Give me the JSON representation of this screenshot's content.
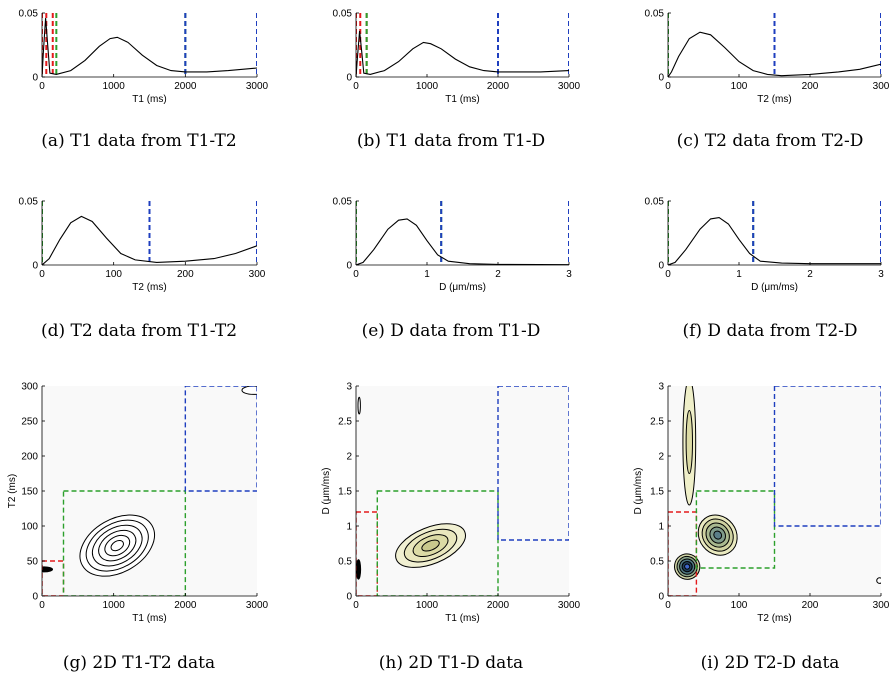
{
  "chart_data": [
    {
      "id": "a",
      "type": "line",
      "caption": "(a) T1 data from T1-T2",
      "xlabel": "T1 (ms)",
      "ylabel": "",
      "xlim": [
        0,
        3000
      ],
      "ylim": [
        0,
        0.05
      ],
      "xticks": [
        0,
        1000,
        2000,
        3000
      ],
      "yticks": [
        0,
        0.05
      ],
      "series": [
        {
          "color": "#000000",
          "points": [
            [
              0,
              0
            ],
            [
              20,
              0.02
            ],
            [
              50,
              0.046
            ],
            [
              80,
              0.025
            ],
            [
              110,
              0.003
            ],
            [
              200,
              0.002
            ],
            [
              400,
              0.005
            ],
            [
              600,
              0.013
            ],
            [
              800,
              0.024
            ],
            [
              950,
              0.03
            ],
            [
              1050,
              0.031
            ],
            [
              1200,
              0.027
            ],
            [
              1400,
              0.017
            ],
            [
              1600,
              0.009
            ],
            [
              1800,
              0.005
            ],
            [
              2000,
              0.004
            ],
            [
              2300,
              0.004
            ],
            [
              2600,
              0.005
            ],
            [
              3000,
              0.007
            ]
          ]
        }
      ],
      "vlines": [
        {
          "x": 0,
          "color": "#e41a1c"
        },
        {
          "x": 60,
          "color": "#e41a1c"
        },
        {
          "x": 150,
          "color": "#e41a1c"
        },
        {
          "x": 200,
          "color": "#2ca02c"
        },
        {
          "x": 2000,
          "color": "#2ca02c"
        },
        {
          "x": 2000,
          "color": "#1f3fbf"
        },
        {
          "x": 3000,
          "color": "#1f3fbf"
        }
      ]
    },
    {
      "id": "b",
      "type": "line",
      "caption": "(b) T1 data from T1-D",
      "xlabel": "T1 (ms)",
      "ylabel": "",
      "xlim": [
        0,
        3000
      ],
      "ylim": [
        0,
        0.05
      ],
      "xticks": [
        0,
        1000,
        2000,
        3000
      ],
      "yticks": [
        0,
        0.05
      ],
      "series": [
        {
          "color": "#000000",
          "points": [
            [
              0,
              0
            ],
            [
              20,
              0.015
            ],
            [
              50,
              0.036
            ],
            [
              80,
              0.02
            ],
            [
              110,
              0.003
            ],
            [
              200,
              0.002
            ],
            [
              400,
              0.005
            ],
            [
              600,
              0.012
            ],
            [
              800,
              0.022
            ],
            [
              950,
              0.027
            ],
            [
              1050,
              0.026
            ],
            [
              1200,
              0.022
            ],
            [
              1400,
              0.014
            ],
            [
              1600,
              0.008
            ],
            [
              1800,
              0.005
            ],
            [
              2000,
              0.004
            ],
            [
              2300,
              0.004
            ],
            [
              2600,
              0.004
            ],
            [
              3000,
              0.005
            ]
          ]
        }
      ],
      "vlines": [
        {
          "x": 0,
          "color": "#e41a1c"
        },
        {
          "x": 60,
          "color": "#e41a1c"
        },
        {
          "x": 150,
          "color": "#e41a1c"
        },
        {
          "x": 150,
          "color": "#2ca02c"
        },
        {
          "x": 2000,
          "color": "#2ca02c"
        },
        {
          "x": 2000,
          "color": "#1f3fbf"
        },
        {
          "x": 3000,
          "color": "#1f3fbf"
        }
      ]
    },
    {
      "id": "c",
      "type": "line",
      "caption": "(c) T2 data from T2-D",
      "xlabel": "T2 (ms)",
      "ylabel": "",
      "xlim": [
        0,
        300
      ],
      "ylim": [
        0,
        0.05
      ],
      "xticks": [
        0,
        100,
        200,
        300
      ],
      "yticks": [
        0,
        0.05
      ],
      "series": [
        {
          "color": "#000000",
          "points": [
            [
              0,
              0
            ],
            [
              5,
              0.004
            ],
            [
              15,
              0.016
            ],
            [
              30,
              0.03
            ],
            [
              45,
              0.035
            ],
            [
              60,
              0.033
            ],
            [
              80,
              0.023
            ],
            [
              100,
              0.012
            ],
            [
              120,
              0.005
            ],
            [
              140,
              0.002
            ],
            [
              160,
              0.001
            ],
            [
              200,
              0.002
            ],
            [
              240,
              0.004
            ],
            [
              270,
              0.006
            ],
            [
              300,
              0.01
            ]
          ]
        }
      ],
      "vlines": [
        {
          "x": 0,
          "color": "#e41a1c"
        },
        {
          "x": 0,
          "color": "#2ca02c"
        },
        {
          "x": 150,
          "color": "#2ca02c"
        },
        {
          "x": 150,
          "color": "#1f3fbf"
        },
        {
          "x": 300,
          "color": "#1f3fbf"
        }
      ]
    },
    {
      "id": "d",
      "type": "line",
      "caption": "(d) T2 data from T1-T2",
      "xlabel": "T2 (ms)",
      "ylabel": "",
      "xlim": [
        0,
        300
      ],
      "ylim": [
        0,
        0.05
      ],
      "xticks": [
        0,
        100,
        200,
        300
      ],
      "yticks": [
        0,
        0.05
      ],
      "series": [
        {
          "color": "#000000",
          "points": [
            [
              0,
              0
            ],
            [
              10,
              0.005
            ],
            [
              25,
              0.02
            ],
            [
              40,
              0.033
            ],
            [
              55,
              0.038
            ],
            [
              70,
              0.034
            ],
            [
              90,
              0.021
            ],
            [
              110,
              0.009
            ],
            [
              130,
              0.004
            ],
            [
              160,
              0.002
            ],
            [
              200,
              0.003
            ],
            [
              240,
              0.005
            ],
            [
              270,
              0.009
            ],
            [
              300,
              0.015
            ]
          ]
        }
      ],
      "vlines": [
        {
          "x": 0,
          "color": "#e41a1c"
        },
        {
          "x": 0,
          "color": "#2ca02c"
        },
        {
          "x": 150,
          "color": "#2ca02c"
        },
        {
          "x": 150,
          "color": "#1f3fbf"
        },
        {
          "x": 300,
          "color": "#1f3fbf"
        }
      ]
    },
    {
      "id": "e",
      "type": "line",
      "caption": "(e) D data from T1-D",
      "xlabel": "D (μm/ms)",
      "ylabel": "",
      "xlim": [
        0,
        3
      ],
      "ylim": [
        0,
        0.05
      ],
      "xticks": [
        0,
        1,
        2,
        3
      ],
      "yticks": [
        0,
        0.05
      ],
      "series": [
        {
          "color": "#000000",
          "points": [
            [
              0,
              0
            ],
            [
              0.1,
              0.002
            ],
            [
              0.25,
              0.012
            ],
            [
              0.45,
              0.028
            ],
            [
              0.6,
              0.035
            ],
            [
              0.72,
              0.036
            ],
            [
              0.85,
              0.031
            ],
            [
              1.0,
              0.019
            ],
            [
              1.15,
              0.008
            ],
            [
              1.3,
              0.003
            ],
            [
              1.6,
              0.001
            ],
            [
              2.0,
              0.0005
            ],
            [
              3.0,
              0.0002
            ]
          ]
        }
      ],
      "vlines": [
        {
          "x": 0,
          "color": "#e41a1c"
        },
        {
          "x": 0,
          "color": "#2ca02c"
        },
        {
          "x": 1.2,
          "color": "#2ca02c"
        },
        {
          "x": 1.2,
          "color": "#1f3fbf"
        },
        {
          "x": 3,
          "color": "#1f3fbf"
        }
      ]
    },
    {
      "id": "f",
      "type": "line",
      "caption": "(f) D data from T2-D",
      "xlabel": "D (μm/ms)",
      "ylabel": "",
      "xlim": [
        0,
        3
      ],
      "ylim": [
        0,
        0.05
      ],
      "xticks": [
        0,
        1,
        2,
        3
      ],
      "yticks": [
        0,
        0.05
      ],
      "series": [
        {
          "color": "#000000",
          "points": [
            [
              0,
              0
            ],
            [
              0.1,
              0.002
            ],
            [
              0.25,
              0.012
            ],
            [
              0.45,
              0.028
            ],
            [
              0.6,
              0.036
            ],
            [
              0.72,
              0.037
            ],
            [
              0.85,
              0.032
            ],
            [
              1.0,
              0.02
            ],
            [
              1.15,
              0.009
            ],
            [
              1.3,
              0.003
            ],
            [
              1.6,
              0.0015
            ],
            [
              2.0,
              0.001
            ],
            [
              3.0,
              0.001
            ]
          ]
        }
      ],
      "vlines": [
        {
          "x": 0,
          "color": "#e41a1c"
        },
        {
          "x": 0,
          "color": "#2ca02c"
        },
        {
          "x": 1.2,
          "color": "#2ca02c"
        },
        {
          "x": 1.2,
          "color": "#1f3fbf"
        },
        {
          "x": 3,
          "color": "#1f3fbf"
        }
      ]
    },
    {
      "id": "g",
      "type": "contour",
      "caption": "(g) 2D T1-T2 data",
      "xlabel": "T1 (ms)",
      "ylabel": "T2 (ms)",
      "xlim": [
        0,
        3000
      ],
      "ylim": [
        0,
        300
      ],
      "xticks": [
        0,
        1000,
        2000,
        3000
      ],
      "yticks": [
        0,
        50,
        100,
        150,
        200,
        250,
        300
      ],
      "boxes": [
        {
          "x0": 0,
          "y0": 0,
          "x1": 300,
          "y1": 50,
          "color": "#e41a1c"
        },
        {
          "x0": 300,
          "y0": 0,
          "x1": 2000,
          "y1": 150,
          "color": "#2ca02c"
        },
        {
          "x0": 2000,
          "y0": 150,
          "x1": 3000,
          "y1": 300,
          "color": "#1f3fbf"
        }
      ],
      "peaks": [
        {
          "cx": 1050,
          "cy": 72,
          "rx": 560,
          "ry": 38,
          "angle": -30,
          "levels": 6,
          "colors": [
            "#ffffff",
            "#ffffff",
            "#ffffff",
            "#ffffff",
            "#ffffff",
            "#ffffff"
          ]
        },
        {
          "cx": 30,
          "cy": 38,
          "rx": 35,
          "ry": 12,
          "angle": 90,
          "levels": 2,
          "colors": [
            "#000000",
            "#000000"
          ]
        },
        {
          "cx": 2950,
          "cy": 294,
          "rx": 160,
          "ry": 6,
          "angle": 0,
          "levels": 1,
          "colors": [
            "#ffffff"
          ]
        }
      ]
    },
    {
      "id": "h",
      "type": "contour",
      "caption": "(h) 2D T1-D data",
      "xlabel": "T1 (ms)",
      "ylabel": "D (μm/ms)",
      "xlim": [
        0,
        3000
      ],
      "ylim": [
        0,
        3
      ],
      "xticks": [
        0,
        1000,
        2000,
        3000
      ],
      "yticks": [
        0,
        0.5,
        1,
        1.5,
        2,
        2.5,
        3
      ],
      "boxes": [
        {
          "x0": 0,
          "y0": 0,
          "x1": 300,
          "y1": 1.2,
          "color": "#e41a1c"
        },
        {
          "x0": 300,
          "y0": 0,
          "x1": 2000,
          "y1": 1.5,
          "color": "#2ca02c"
        },
        {
          "x0": 2000,
          "y0": 0.8,
          "x1": 3000,
          "y1": 3,
          "color": "#1f3fbf"
        }
      ],
      "peaks": [
        {
          "cx": 1050,
          "cy": 0.72,
          "rx": 520,
          "ry": 0.26,
          "angle": -22,
          "levels": 4,
          "colors": [
            "#f1f0d2",
            "#e9e7bd",
            "#dcdba5",
            "#c8c88c"
          ]
        },
        {
          "cx": 35,
          "cy": 0.38,
          "rx": 0.14,
          "ry": 30,
          "angle": 0,
          "levels": 2,
          "colors": [
            "#000000",
            "#000000"
          ]
        },
        {
          "cx": 45,
          "cy": 2.72,
          "rx": 0.12,
          "ry": 15,
          "angle": 0,
          "levels": 1,
          "colors": [
            "#ffffff"
          ]
        }
      ]
    },
    {
      "id": "i",
      "type": "contour",
      "caption": "(i) 2D T2-D data",
      "xlabel": "T2 (ms)",
      "ylabel": "D (μm/ms)",
      "xlim": [
        0,
        300
      ],
      "ylim": [
        0,
        3
      ],
      "xticks": [
        0,
        100,
        200,
        300
      ],
      "yticks": [
        0,
        0.5,
        1,
        1.5,
        2,
        2.5,
        3
      ],
      "boxes": [
        {
          "x0": 0,
          "y0": 0,
          "x1": 40,
          "y1": 1.2,
          "color": "#e41a1c"
        },
        {
          "x0": 40,
          "y0": 0.4,
          "x1": 150,
          "y1": 1.5,
          "color": "#2ca02c"
        },
        {
          "x0": 150,
          "y0": 1.0,
          "x1": 300,
          "y1": 3,
          "color": "#1f3fbf"
        }
      ],
      "peaks": [
        {
          "cx": 30,
          "cy": 2.2,
          "rx": 0.9,
          "ry": 9,
          "angle": 0,
          "levels": 2,
          "colors": [
            "#efefc9",
            "#dcdba5"
          ]
        },
        {
          "cx": 70,
          "cy": 0.87,
          "rx": 26,
          "ry": 0.3,
          "angle": -38,
          "levels": 5,
          "colors": [
            "#eaeac0",
            "#cfd2a0",
            "#a9b98f",
            "#7f9b8a",
            "#5a7e88"
          ]
        },
        {
          "cx": 27,
          "cy": 0.42,
          "rx": 18,
          "ry": 0.18,
          "angle": 55,
          "levels": 5,
          "colors": [
            "#d2d6a8",
            "#8aa38a",
            "#4f7782",
            "#1f3f5a",
            "#3f66c8"
          ]
        },
        {
          "cx": 298,
          "cy": 0.22,
          "rx": 4,
          "ry": 0.04,
          "angle": 0,
          "levels": 1,
          "colors": [
            "#ffffff"
          ]
        }
      ]
    }
  ]
}
